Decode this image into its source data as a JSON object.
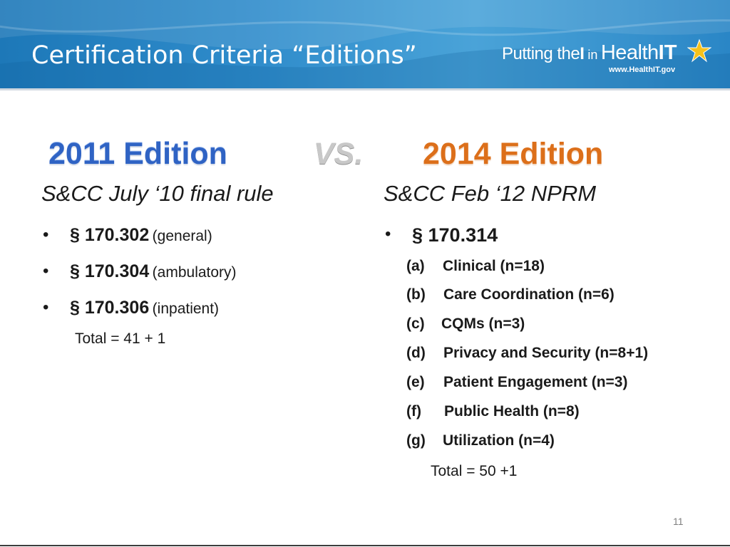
{
  "slide": {
    "title": "Certification Criteria “Editions”",
    "page_number": "11"
  },
  "logo": {
    "text_putting": "Putting the",
    "text_i": "I",
    "text_in": "in",
    "text_health": "Health",
    "text_it": "IT",
    "url": "www.HealthIT.gov"
  },
  "left": {
    "heading": "2011 Edition",
    "subtitle": "S&CC July ‘10 final rule",
    "items": [
      {
        "section": "§ 170.302",
        "note": "(general)"
      },
      {
        "section": "§ 170.304",
        "note": "(ambulatory)"
      },
      {
        "section": "§ 170.306",
        "note": "(inpatient)"
      }
    ],
    "total": "Total = 41 + 1"
  },
  "vs": "VS.",
  "right": {
    "heading": "2014 Edition",
    "subtitle": "S&CC Feb ‘12 NPRM",
    "section": "§ 170.314",
    "criteria": [
      {
        "letter": "(a)",
        "label": "Clinical (n=18)"
      },
      {
        "letter": "(b)",
        "label": "Care Coordination (n=6)"
      },
      {
        "letter": "(c)",
        "label": "CQMs (n=3)"
      },
      {
        "letter": "(d)",
        "label": "Privacy and Security (n=8+1)"
      },
      {
        "letter": "(e)",
        "label": "Patient Engagement (n=3)"
      },
      {
        "letter": "(f)",
        "label": "Public Health (n=8)"
      },
      {
        "letter": "(g)",
        "label": "Utilization (n=4)"
      }
    ],
    "total": "Total = 50 +1"
  },
  "colors": {
    "header": "#2f8ccb",
    "edition_2011": "#2f63c4",
    "edition_2014": "#dc6f1a",
    "vs": "#c8c8c8"
  }
}
